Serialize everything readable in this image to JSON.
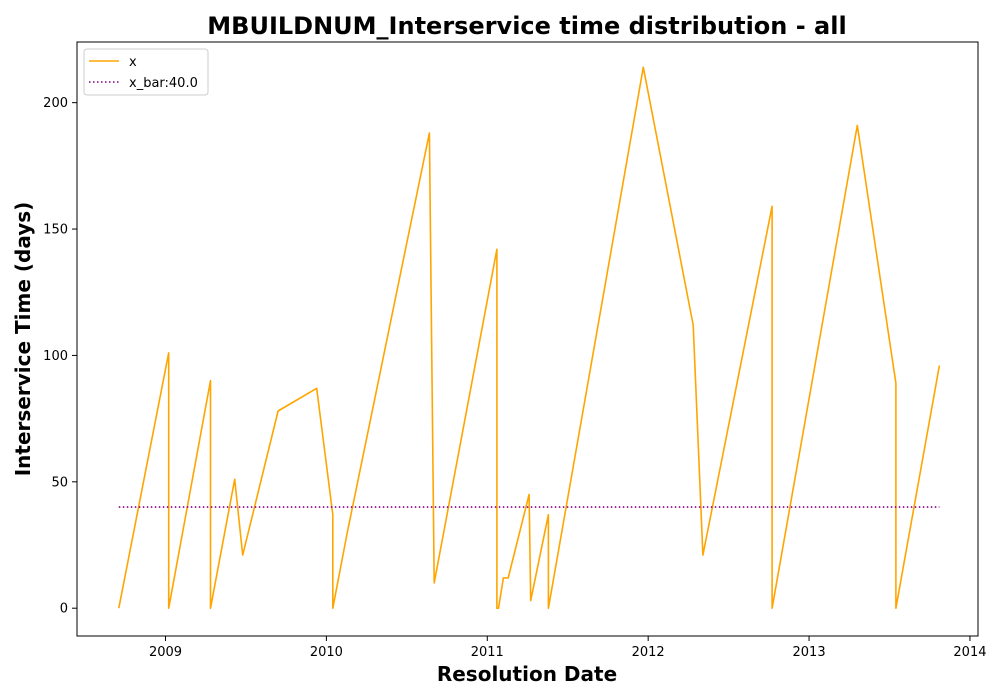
{
  "chart_data": {
    "type": "line",
    "title": "MBUILDNUM_Interservice time distribution - all",
    "xlabel": "Resolution Date",
    "ylabel": "Interservice Time (days)",
    "xlim": [
      2008.45,
      2014.05
    ],
    "ylim": [
      -11,
      224
    ],
    "xticks": [
      2009,
      2010,
      2011,
      2012,
      2013,
      2014
    ],
    "xtick_labels": [
      "2009",
      "2010",
      "2011",
      "2012",
      "2013",
      "2014"
    ],
    "yticks": [
      0,
      50,
      100,
      150,
      200
    ],
    "ytick_labels": [
      "0",
      "50",
      "100",
      "150",
      "200"
    ],
    "grid": false,
    "legend": {
      "position": "top-left",
      "entries": [
        {
          "label": "x",
          "style": "solid",
          "color": "#ffa500"
        },
        {
          "label": "x_bar:40.0",
          "style": "dotted",
          "color": "#800080"
        }
      ]
    },
    "series": [
      {
        "name": "x",
        "color": "#ffa500",
        "style": "solid",
        "x": [
          2008.71,
          2009.02,
          2009.02,
          2009.28,
          2009.28,
          2009.43,
          2009.48,
          2009.7,
          2009.94,
          2010.04,
          2010.04,
          2010.13,
          2010.64,
          2010.67,
          2011.06,
          2011.06,
          2011.07,
          2011.1,
          2011.13,
          2011.26,
          2011.27,
          2011.38,
          2011.38,
          2011.97,
          2012.28,
          2012.34,
          2012.77,
          2012.77,
          2013.3,
          2013.54,
          2013.54,
          2013.81
        ],
        "y": [
          0,
          101,
          0,
          90,
          0,
          51,
          21,
          78,
          87,
          37,
          0,
          30,
          188,
          10,
          142,
          0,
          0,
          12,
          12,
          45,
          3,
          37,
          0,
          214,
          112,
          21,
          159,
          0,
          191,
          89,
          0,
          96
        ]
      },
      {
        "name": "x_bar:40.0",
        "color": "#800080",
        "style": "dotted",
        "x": [
          2008.71,
          2013.81
        ],
        "y": [
          40.0,
          40.0
        ]
      }
    ]
  }
}
